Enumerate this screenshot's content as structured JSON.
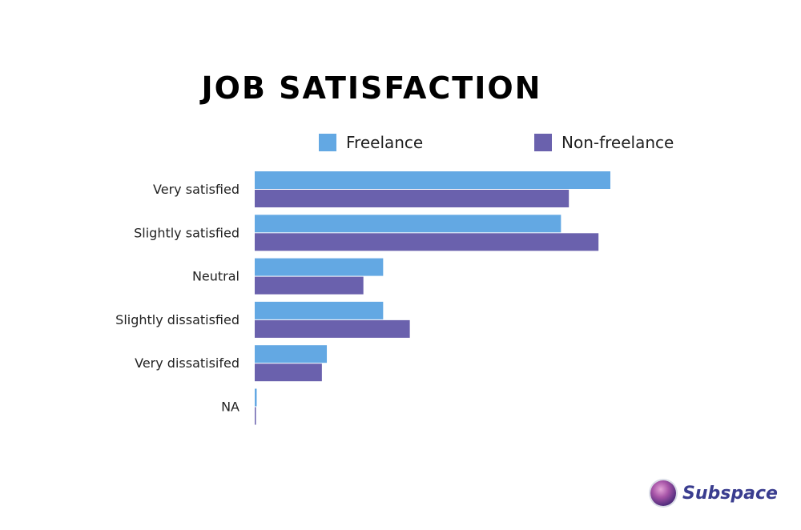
{
  "colors": {
    "freelance": "#63a8e3",
    "non_freelance": "#6a61ad"
  },
  "logo": {
    "text": "Subspace",
    "icon": "subspace-planet-icon"
  },
  "chart_data": {
    "type": "bar",
    "orientation": "horizontal",
    "title": "JOB SATISFACTION",
    "legend_position": "top",
    "grid": false,
    "categories": [
      "Very satisfied",
      "Slightly satisfied",
      "Neutral",
      "Slightly dissatisfied",
      "Very dissatisifed",
      "NA"
    ],
    "series": [
      {
        "name": "Freelance",
        "values": [
          36.0,
          31.0,
          13.0,
          13.0,
          7.3,
          0.2
        ]
      },
      {
        "name": "Non-freelance",
        "values": [
          31.8,
          34.8,
          11.0,
          15.7,
          6.8,
          0.1
        ]
      }
    ],
    "xlim": [
      0,
      36
    ],
    "xlabel": "",
    "ylabel": ""
  }
}
